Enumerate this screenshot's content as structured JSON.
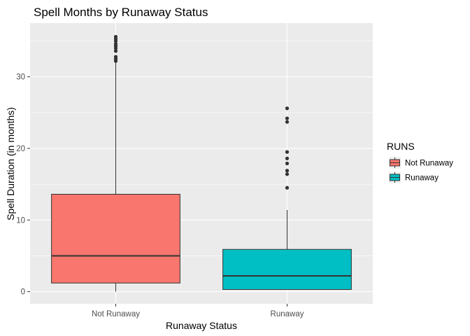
{
  "chart_data": {
    "type": "boxplot",
    "title": "Spell Months by Runaway Status",
    "xlabel": "Runaway Status",
    "ylabel": "Spell Duration (in months)",
    "categories": [
      "Not Runaway",
      "Runaway"
    ],
    "ylim": [
      -1.7,
      37.5
    ],
    "y_ticks": [
      0,
      10,
      20,
      30
    ],
    "grid": true,
    "legend": {
      "title": "RUNS",
      "position": "right",
      "entries": [
        "Not Runaway",
        "Runaway"
      ]
    },
    "series": [
      {
        "name": "Not Runaway",
        "color": "#F8766D",
        "whisker_low": 0.0,
        "q1": 1.2,
        "median": 5.0,
        "q3": 13.6,
        "whisker_high": 32.0,
        "outliers": [
          32.2,
          32.5,
          32.8,
          33.6,
          34.0,
          34.3,
          34.6,
          35.0,
          35.3,
          35.6
        ]
      },
      {
        "name": "Runaway",
        "color": "#00BFC4",
        "whisker_low": 0.3,
        "q1": 0.3,
        "median": 2.2,
        "q3": 5.9,
        "whisker_high": 11.4,
        "outliers": [
          14.5,
          16.4,
          16.9,
          17.9,
          18.6,
          19.5,
          23.7,
          24.2,
          25.6
        ]
      }
    ]
  }
}
